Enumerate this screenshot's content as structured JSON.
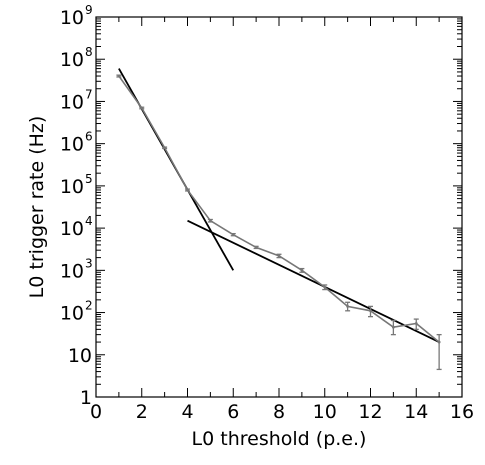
{
  "chart_data": {
    "type": "line",
    "title": "",
    "xlabel": "L0 threshold (p.e.)",
    "ylabel": "L0 trigger rate (Hz)",
    "xlim": [
      0,
      16
    ],
    "ylim": [
      1,
      1000000000
    ],
    "yscale": "log",
    "grid": false,
    "x_ticks": [
      "0",
      "2",
      "4",
      "6",
      "8",
      "10",
      "12",
      "14",
      "16"
    ],
    "y_ticks": [
      {
        "value": 1,
        "base": "1",
        "exp": ""
      },
      {
        "value": 10,
        "base": "10",
        "exp": ""
      },
      {
        "value": 100,
        "base": "10",
        "exp": "2"
      },
      {
        "value": 1000,
        "base": "10",
        "exp": "3"
      },
      {
        "value": 10000,
        "base": "10",
        "exp": "4"
      },
      {
        "value": 100000,
        "base": "10",
        "exp": "5"
      },
      {
        "value": 1000000,
        "base": "10",
        "exp": "6"
      },
      {
        "value": 10000000,
        "base": "10",
        "exp": "7"
      },
      {
        "value": 100000000,
        "base": "10",
        "exp": "8"
      },
      {
        "value": 1000000000,
        "base": "10",
        "exp": "9"
      }
    ],
    "series": [
      {
        "color": "#777777",
        "points": [
          {
            "x": 1,
            "y": 40000000,
            "err_low": 38000000,
            "err_high": 42000000
          },
          {
            "x": 2,
            "y": 7000000,
            "err_low": 6700000,
            "err_high": 7300000
          },
          {
            "x": 3,
            "y": 800000,
            "err_low": 770000,
            "err_high": 830000
          },
          {
            "x": 4,
            "y": 80000,
            "err_low": 76000,
            "err_high": 84000
          },
          {
            "x": 5,
            "y": 15000,
            "err_low": 14000,
            "err_high": 16000
          },
          {
            "x": 6,
            "y": 7000,
            "err_low": 6600,
            "err_high": 7400
          },
          {
            "x": 7,
            "y": 3500,
            "err_low": 3300,
            "err_high": 3700
          },
          {
            "x": 8,
            "y": 2200,
            "err_low": 2000,
            "err_high": 2400
          },
          {
            "x": 9,
            "y": 1000,
            "err_low": 900,
            "err_high": 1100
          },
          {
            "x": 10,
            "y": 400,
            "err_low": 350,
            "err_high": 450
          },
          {
            "x": 11,
            "y": 140,
            "err_low": 110,
            "err_high": 175
          },
          {
            "x": 12,
            "y": 110,
            "err_low": 80,
            "err_high": 140
          },
          {
            "x": 13,
            "y": 45,
            "err_low": 30,
            "err_high": 65
          },
          {
            "x": 14,
            "y": 55,
            "err_low": 40,
            "err_high": 70
          },
          {
            "x": 15,
            "y": 20,
            "err_low": 4.5,
            "err_high": 30
          }
        ]
      }
    ],
    "fit_lines": [
      {
        "color": "#000000",
        "from": {
          "x": 1,
          "y": 60000000
        },
        "to": {
          "x": 6,
          "y": 1000
        }
      },
      {
        "color": "#000000",
        "from": {
          "x": 4,
          "y": 15000
        },
        "to": {
          "x": 15,
          "y": 20
        }
      }
    ]
  }
}
